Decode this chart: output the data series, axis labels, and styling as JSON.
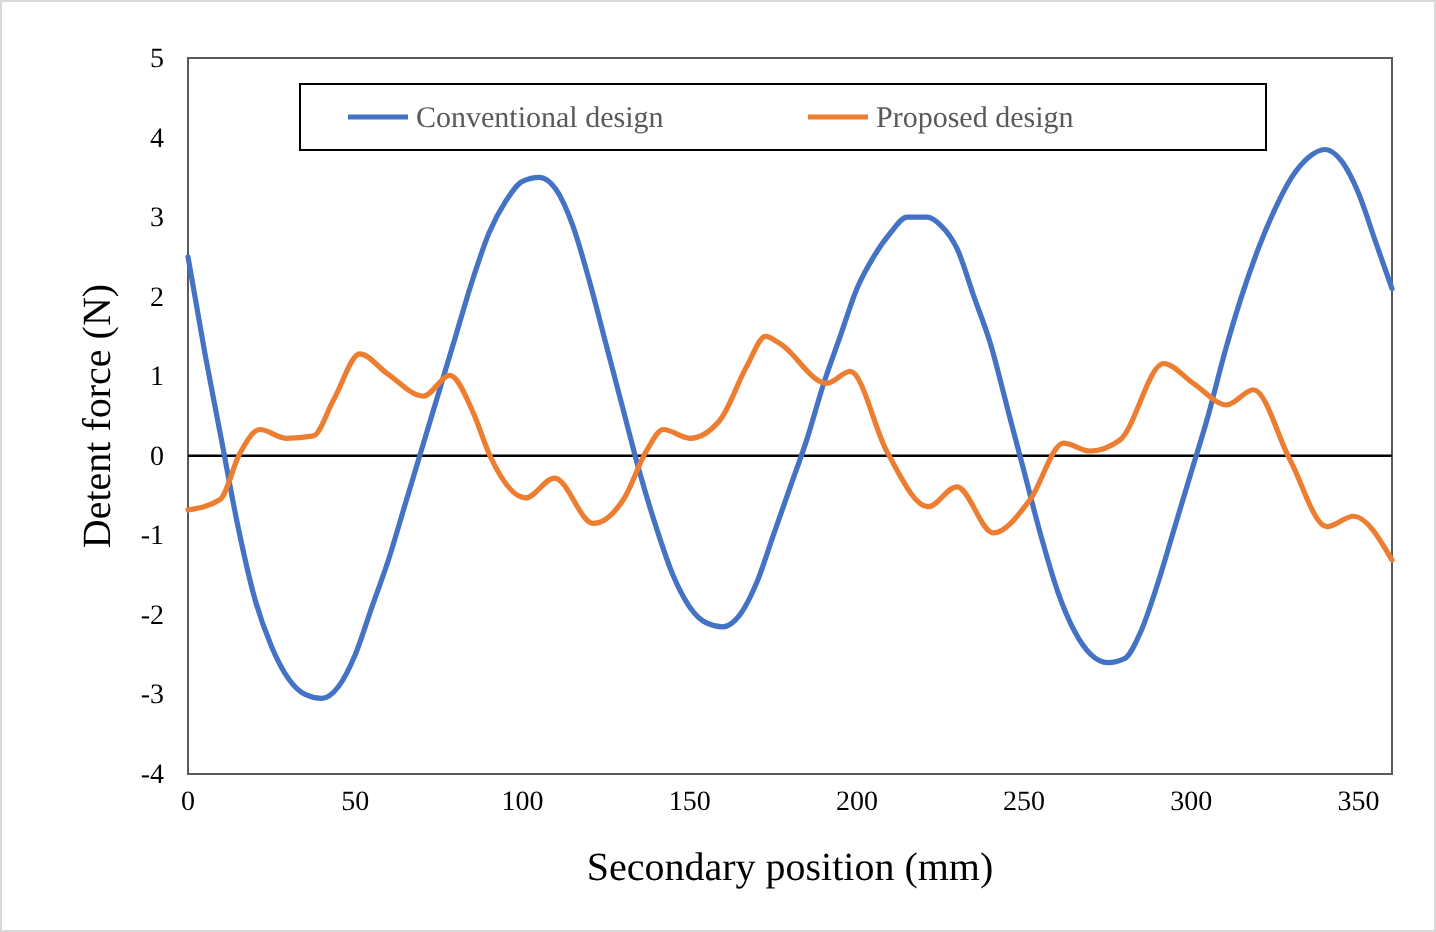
{
  "chart_data": {
    "type": "line",
    "xlabel": "Secondary position (mm)",
    "ylabel": "Detent force (N)",
    "xlim": [
      0,
      360
    ],
    "xticks": [
      0,
      50,
      100,
      150,
      200,
      250,
      300,
      350
    ],
    "ylim": [
      -4,
      5
    ],
    "yticks": [
      -4,
      -3,
      -2,
      -1,
      0,
      1,
      2,
      3,
      4,
      5
    ],
    "grid": false,
    "legend": "top",
    "line_style": "solid",
    "marker": "none",
    "ref_lines": [
      {
        "axis": "y",
        "value": 0,
        "color": "#000000"
      }
    ],
    "series": [
      {
        "name": "Conventional design",
        "color": "#4472c4",
        "x": [
          0,
          5,
          10,
          15,
          20,
          25,
          30,
          35,
          40,
          45,
          50,
          55,
          60,
          65,
          70,
          75,
          80,
          85,
          90,
          95,
          100,
          105,
          110,
          115,
          120,
          125,
          130,
          135,
          140,
          145,
          150,
          155,
          160,
          165,
          170,
          175,
          180,
          185,
          190,
          195,
          200,
          205,
          210,
          215,
          221,
          225,
          230,
          235,
          240,
          245,
          250,
          255,
          260,
          265,
          270,
          275,
          280,
          285,
          290,
          295,
          300,
          305,
          310,
          315,
          320,
          325,
          330,
          335,
          340,
          345,
          350,
          355,
          360
        ],
        "values": [
          2.5,
          1.3,
          0.2,
          -0.9,
          -1.8,
          -2.4,
          -2.8,
          -3.0,
          -3.05,
          -2.9,
          -2.5,
          -1.9,
          -1.3,
          -0.6,
          0.1,
          0.8,
          1.5,
          2.2,
          2.8,
          3.2,
          3.45,
          3.5,
          3.35,
          2.9,
          2.2,
          1.4,
          0.6,
          -0.2,
          -0.9,
          -1.5,
          -1.9,
          -2.1,
          -2.15,
          -2.0,
          -1.6,
          -1.0,
          -0.4,
          0.2,
          0.9,
          1.5,
          2.1,
          2.5,
          2.8,
          3.0,
          3.0,
          2.9,
          2.6,
          2.0,
          1.4,
          0.6,
          -0.2,
          -1.0,
          -1.7,
          -2.2,
          -2.5,
          -2.6,
          -2.55,
          -2.2,
          -1.6,
          -0.9,
          -0.2,
          0.5,
          1.3,
          2.0,
          2.6,
          3.1,
          3.5,
          3.75,
          3.85,
          3.7,
          3.3,
          2.7,
          2.1
        ]
      },
      {
        "name": "Proposed design",
        "color": "#ed7d31",
        "x": [
          0,
          9.6,
          15.5,
          21.5,
          29.3,
          37.5,
          43.5,
          51.4,
          59.4,
          70.4,
          78.3,
          85.3,
          90.3,
          100.9,
          109.6,
          121.2,
          130.2,
          137.2,
          142.1,
          150.1,
          159.1,
          167,
          172.7,
          177,
          191,
          198,
          209,
          221.3,
          229.9,
          240.8,
          251.8,
          261.8,
          269.7,
          278.7,
          291.7,
          300.6,
          310.6,
          318.6,
          329.5,
          340.5,
          348.5,
          360
        ],
        "values": [
          -0.68,
          -0.55,
          0.03,
          0.33,
          0.22,
          0.25,
          0.7,
          1.28,
          1.04,
          0.75,
          1.01,
          0.54,
          0,
          -0.53,
          -0.28,
          -0.85,
          -0.55,
          0.07,
          0.33,
          0.22,
          0.45,
          1.12,
          1.5,
          1.41,
          0.91,
          1.06,
          0.05,
          -0.64,
          -0.39,
          -0.97,
          -0.55,
          0.16,
          0.06,
          0.2,
          1.16,
          0.91,
          0.64,
          0.83,
          -0.05,
          -0.89,
          -0.76,
          -1.31
        ]
      }
    ]
  }
}
